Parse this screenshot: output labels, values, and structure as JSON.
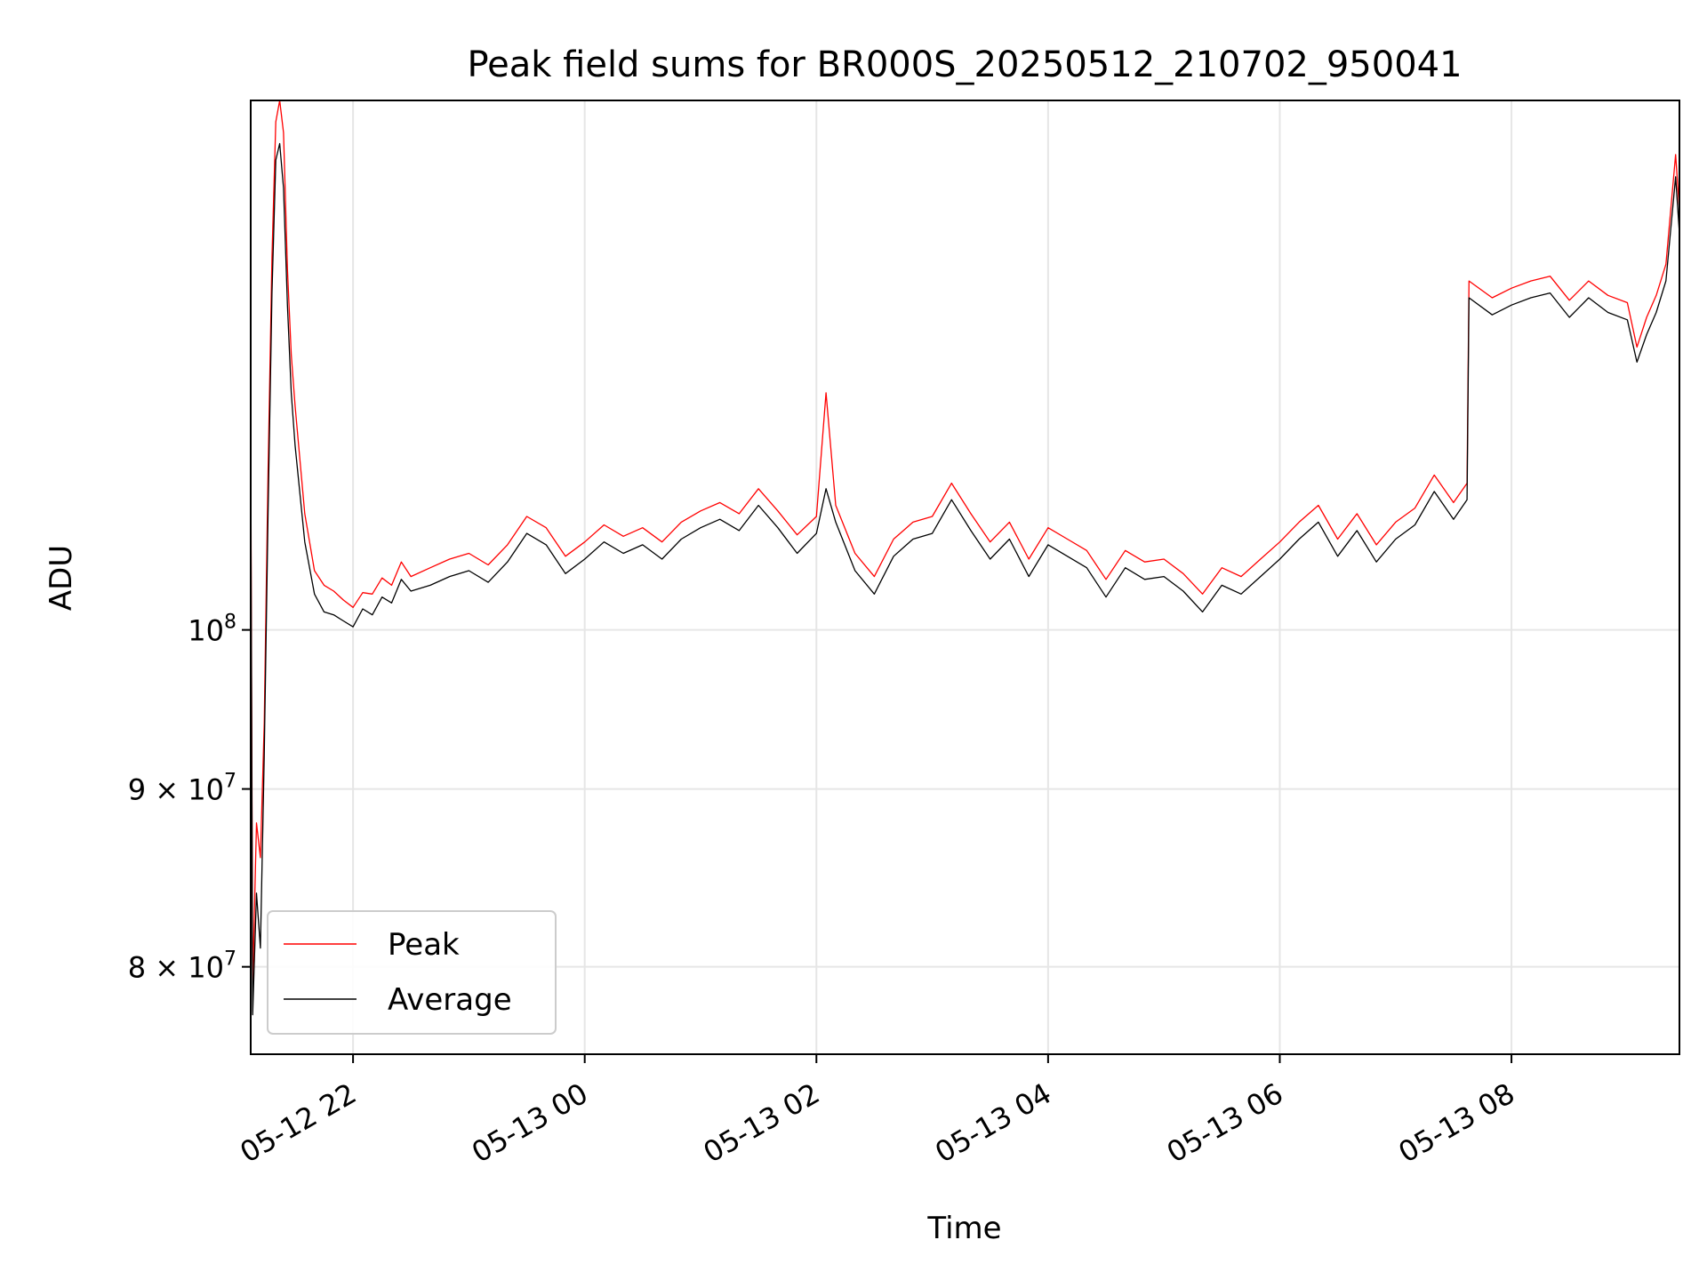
{
  "chart_data": {
    "type": "line",
    "title": "Peak field sums for BR000S_20250512_210702_950041",
    "xlabel": "Time",
    "ylabel": "ADU",
    "x_axis": {
      "kind": "datetime",
      "range": [
        "2025-05-12 21:07",
        "2025-05-13 09:27"
      ],
      "ticks": [
        {
          "value": "2025-05-12 22:00",
          "label": "05-12 22"
        },
        {
          "value": "2025-05-13 00:00",
          "label": "05-13 00"
        },
        {
          "value": "2025-05-13 02:00",
          "label": "05-13 02"
        },
        {
          "value": "2025-05-13 04:00",
          "label": "05-13 04"
        },
        {
          "value": "2025-05-13 06:00",
          "label": "05-13 06"
        },
        {
          "value": "2025-05-13 08:00",
          "label": "05-13 08"
        }
      ]
    },
    "y_axis": {
      "scale": "log",
      "range": [
        75500000,
        142000000
      ],
      "ticks": [
        {
          "value": 100000000,
          "label_base": "10",
          "label_exp": "8"
        },
        {
          "value": 90000000,
          "label_base": "9 × 10",
          "label_exp": "7"
        },
        {
          "value": 80000000,
          "label_base": "8 × 10",
          "label_exp": "7"
        }
      ]
    },
    "grid": true,
    "legend_position": "lower-left",
    "series": [
      {
        "name": "Peak",
        "color": "#ff0000",
        "points": [
          [
            "2025-05-12 21:07",
            114000000
          ],
          [
            "2025-05-12 21:08",
            79000000
          ],
          [
            "2025-05-12 21:10",
            88000000
          ],
          [
            "2025-05-12 21:12",
            86000000
          ],
          [
            "2025-05-12 21:14",
            94000000
          ],
          [
            "2025-05-12 21:16",
            111000000
          ],
          [
            "2025-05-12 21:18",
            128000000
          ],
          [
            "2025-05-12 21:20",
            140000000
          ],
          [
            "2025-05-12 21:22",
            142000000
          ],
          [
            "2025-05-12 21:24",
            139000000
          ],
          [
            "2025-05-12 21:26",
            127000000
          ],
          [
            "2025-05-12 21:28",
            120000000
          ],
          [
            "2025-05-12 21:30",
            116000000
          ],
          [
            "2025-05-12 21:35",
            108000000
          ],
          [
            "2025-05-12 21:40",
            104000000
          ],
          [
            "2025-05-12 21:45",
            103000000
          ],
          [
            "2025-05-12 21:50",
            102600000
          ],
          [
            "2025-05-12 21:55",
            102000000
          ],
          [
            "2025-05-12 22:00",
            101500000
          ],
          [
            "2025-05-12 22:05",
            102500000
          ],
          [
            "2025-05-12 22:10",
            102400000
          ],
          [
            "2025-05-12 22:15",
            103500000
          ],
          [
            "2025-05-12 22:20",
            103000000
          ],
          [
            "2025-05-12 22:25",
            104600000
          ],
          [
            "2025-05-12 22:30",
            103600000
          ],
          [
            "2025-05-12 22:40",
            104200000
          ],
          [
            "2025-05-12 22:50",
            104800000
          ],
          [
            "2025-05-12 23:00",
            105200000
          ],
          [
            "2025-05-12 23:10",
            104400000
          ],
          [
            "2025-05-12 23:20",
            105800000
          ],
          [
            "2025-05-12 23:30",
            107800000
          ],
          [
            "2025-05-12 23:40",
            107000000
          ],
          [
            "2025-05-12 23:50",
            105000000
          ],
          [
            "2025-05-13 00:00",
            106000000
          ],
          [
            "2025-05-13 00:10",
            107200000
          ],
          [
            "2025-05-13 00:20",
            106400000
          ],
          [
            "2025-05-13 00:30",
            107000000
          ],
          [
            "2025-05-13 00:40",
            106000000
          ],
          [
            "2025-05-13 00:50",
            107400000
          ],
          [
            "2025-05-13 01:00",
            108200000
          ],
          [
            "2025-05-13 01:10",
            108800000
          ],
          [
            "2025-05-13 01:20",
            108000000
          ],
          [
            "2025-05-13 01:30",
            109800000
          ],
          [
            "2025-05-13 01:40",
            108200000
          ],
          [
            "2025-05-13 01:50",
            106500000
          ],
          [
            "2025-05-13 02:00",
            107800000
          ],
          [
            "2025-05-13 02:05",
            117000000
          ],
          [
            "2025-05-13 02:10",
            108600000
          ],
          [
            "2025-05-13 02:20",
            105200000
          ],
          [
            "2025-05-13 02:30",
            103600000
          ],
          [
            "2025-05-13 02:40",
            106200000
          ],
          [
            "2025-05-13 02:50",
            107400000
          ],
          [
            "2025-05-13 03:00",
            107800000
          ],
          [
            "2025-05-13 03:10",
            110200000
          ],
          [
            "2025-05-13 03:20",
            108000000
          ],
          [
            "2025-05-13 03:30",
            106000000
          ],
          [
            "2025-05-13 03:40",
            107400000
          ],
          [
            "2025-05-13 03:50",
            104800000
          ],
          [
            "2025-05-13 04:00",
            107000000
          ],
          [
            "2025-05-13 04:10",
            106200000
          ],
          [
            "2025-05-13 04:20",
            105400000
          ],
          [
            "2025-05-13 04:30",
            103400000
          ],
          [
            "2025-05-13 04:40",
            105400000
          ],
          [
            "2025-05-13 04:50",
            104600000
          ],
          [
            "2025-05-13 05:00",
            104800000
          ],
          [
            "2025-05-13 05:10",
            103800000
          ],
          [
            "2025-05-13 05:20",
            102400000
          ],
          [
            "2025-05-13 05:30",
            104200000
          ],
          [
            "2025-05-13 05:40",
            103600000
          ],
          [
            "2025-05-13 05:50",
            104800000
          ],
          [
            "2025-05-13 06:00",
            106000000
          ],
          [
            "2025-05-13 06:10",
            107400000
          ],
          [
            "2025-05-13 06:20",
            108600000
          ],
          [
            "2025-05-13 06:30",
            106200000
          ],
          [
            "2025-05-13 06:40",
            108000000
          ],
          [
            "2025-05-13 06:50",
            105800000
          ],
          [
            "2025-05-13 07:00",
            107400000
          ],
          [
            "2025-05-13 07:10",
            108400000
          ],
          [
            "2025-05-13 07:20",
            110800000
          ],
          [
            "2025-05-13 07:30",
            108800000
          ],
          [
            "2025-05-13 07:37",
            110200000
          ],
          [
            "2025-05-13 07:38",
            126000000
          ],
          [
            "2025-05-13 07:50",
            124600000
          ],
          [
            "2025-05-13 08:00",
            125400000
          ],
          [
            "2025-05-13 08:10",
            126000000
          ],
          [
            "2025-05-13 08:20",
            126400000
          ],
          [
            "2025-05-13 08:30",
            124400000
          ],
          [
            "2025-05-13 08:40",
            126000000
          ],
          [
            "2025-05-13 08:50",
            124800000
          ],
          [
            "2025-05-13 09:00",
            124200000
          ],
          [
            "2025-05-13 09:05",
            120600000
          ],
          [
            "2025-05-13 09:10",
            123000000
          ],
          [
            "2025-05-13 09:15",
            124800000
          ],
          [
            "2025-05-13 09:20",
            127400000
          ],
          [
            "2025-05-13 09:25",
            137000000
          ],
          [
            "2025-05-13 09:27",
            132000000
          ]
        ]
      },
      {
        "name": "Average",
        "color": "#000000",
        "points": [
          [
            "2025-05-12 21:07",
            112000000
          ],
          [
            "2025-05-12 21:08",
            77500000
          ],
          [
            "2025-05-12 21:10",
            84000000
          ],
          [
            "2025-05-12 21:12",
            81000000
          ],
          [
            "2025-05-12 21:14",
            92000000
          ],
          [
            "2025-05-12 21:16",
            108000000
          ],
          [
            "2025-05-12 21:18",
            125000000
          ],
          [
            "2025-05-12 21:20",
            136500000
          ],
          [
            "2025-05-12 21:22",
            138000000
          ],
          [
            "2025-05-12 21:24",
            134000000
          ],
          [
            "2025-05-12 21:26",
            124000000
          ],
          [
            "2025-05-12 21:28",
            117000000
          ],
          [
            "2025-05-12 21:30",
            113000000
          ],
          [
            "2025-05-12 21:35",
            106000000
          ],
          [
            "2025-05-12 21:40",
            102400000
          ],
          [
            "2025-05-12 21:45",
            101200000
          ],
          [
            "2025-05-12 21:50",
            101000000
          ],
          [
            "2025-05-12 21:55",
            100600000
          ],
          [
            "2025-05-12 22:00",
            100200000
          ],
          [
            "2025-05-12 22:05",
            101400000
          ],
          [
            "2025-05-12 22:10",
            101000000
          ],
          [
            "2025-05-12 22:15",
            102200000
          ],
          [
            "2025-05-12 22:20",
            101800000
          ],
          [
            "2025-05-12 22:25",
            103400000
          ],
          [
            "2025-05-12 22:30",
            102600000
          ],
          [
            "2025-05-12 22:40",
            103000000
          ],
          [
            "2025-05-12 22:50",
            103600000
          ],
          [
            "2025-05-12 23:00",
            104000000
          ],
          [
            "2025-05-12 23:10",
            103200000
          ],
          [
            "2025-05-12 23:20",
            104600000
          ],
          [
            "2025-05-12 23:30",
            106600000
          ],
          [
            "2025-05-12 23:40",
            105800000
          ],
          [
            "2025-05-12 23:50",
            103800000
          ],
          [
            "2025-05-13 00:00",
            104800000
          ],
          [
            "2025-05-13 00:10",
            106000000
          ],
          [
            "2025-05-13 00:20",
            105200000
          ],
          [
            "2025-05-13 00:30",
            105800000
          ],
          [
            "2025-05-13 00:40",
            104800000
          ],
          [
            "2025-05-13 00:50",
            106200000
          ],
          [
            "2025-05-13 01:00",
            107000000
          ],
          [
            "2025-05-13 01:10",
            107600000
          ],
          [
            "2025-05-13 01:20",
            106800000
          ],
          [
            "2025-05-13 01:30",
            108600000
          ],
          [
            "2025-05-13 01:40",
            107000000
          ],
          [
            "2025-05-13 01:50",
            105200000
          ],
          [
            "2025-05-13 02:00",
            106600000
          ],
          [
            "2025-05-13 02:05",
            109800000
          ],
          [
            "2025-05-13 02:10",
            107400000
          ],
          [
            "2025-05-13 02:20",
            104000000
          ],
          [
            "2025-05-13 02:30",
            102400000
          ],
          [
            "2025-05-13 02:40",
            105000000
          ],
          [
            "2025-05-13 02:50",
            106200000
          ],
          [
            "2025-05-13 03:00",
            106600000
          ],
          [
            "2025-05-13 03:10",
            109000000
          ],
          [
            "2025-05-13 03:20",
            106800000
          ],
          [
            "2025-05-13 03:30",
            104800000
          ],
          [
            "2025-05-13 03:40",
            106200000
          ],
          [
            "2025-05-13 03:50",
            103600000
          ],
          [
            "2025-05-13 04:00",
            105800000
          ],
          [
            "2025-05-13 04:10",
            105000000
          ],
          [
            "2025-05-13 04:20",
            104200000
          ],
          [
            "2025-05-13 04:30",
            102200000
          ],
          [
            "2025-05-13 04:40",
            104200000
          ],
          [
            "2025-05-13 04:50",
            103400000
          ],
          [
            "2025-05-13 05:00",
            103600000
          ],
          [
            "2025-05-13 05:10",
            102600000
          ],
          [
            "2025-05-13 05:20",
            101200000
          ],
          [
            "2025-05-13 05:30",
            103000000
          ],
          [
            "2025-05-13 05:40",
            102400000
          ],
          [
            "2025-05-13 05:50",
            103600000
          ],
          [
            "2025-05-13 06:00",
            104800000
          ],
          [
            "2025-05-13 06:10",
            106200000
          ],
          [
            "2025-05-13 06:20",
            107400000
          ],
          [
            "2025-05-13 06:30",
            105000000
          ],
          [
            "2025-05-13 06:40",
            106800000
          ],
          [
            "2025-05-13 06:50",
            104600000
          ],
          [
            "2025-05-13 07:00",
            106200000
          ],
          [
            "2025-05-13 07:10",
            107200000
          ],
          [
            "2025-05-13 07:20",
            109600000
          ],
          [
            "2025-05-13 07:30",
            107600000
          ],
          [
            "2025-05-13 07:37",
            109000000
          ],
          [
            "2025-05-13 07:38",
            124600000
          ],
          [
            "2025-05-13 07:50",
            123200000
          ],
          [
            "2025-05-13 08:00",
            124000000
          ],
          [
            "2025-05-13 08:10",
            124600000
          ],
          [
            "2025-05-13 08:20",
            125000000
          ],
          [
            "2025-05-13 08:30",
            123000000
          ],
          [
            "2025-05-13 08:40",
            124600000
          ],
          [
            "2025-05-13 08:50",
            123400000
          ],
          [
            "2025-05-13 09:00",
            122800000
          ],
          [
            "2025-05-13 09:05",
            119400000
          ],
          [
            "2025-05-13 09:10",
            121600000
          ],
          [
            "2025-05-13 09:15",
            123400000
          ],
          [
            "2025-05-13 09:20",
            126000000
          ],
          [
            "2025-05-13 09:25",
            135000000
          ],
          [
            "2025-05-13 09:27",
            130000000
          ]
        ]
      }
    ]
  }
}
